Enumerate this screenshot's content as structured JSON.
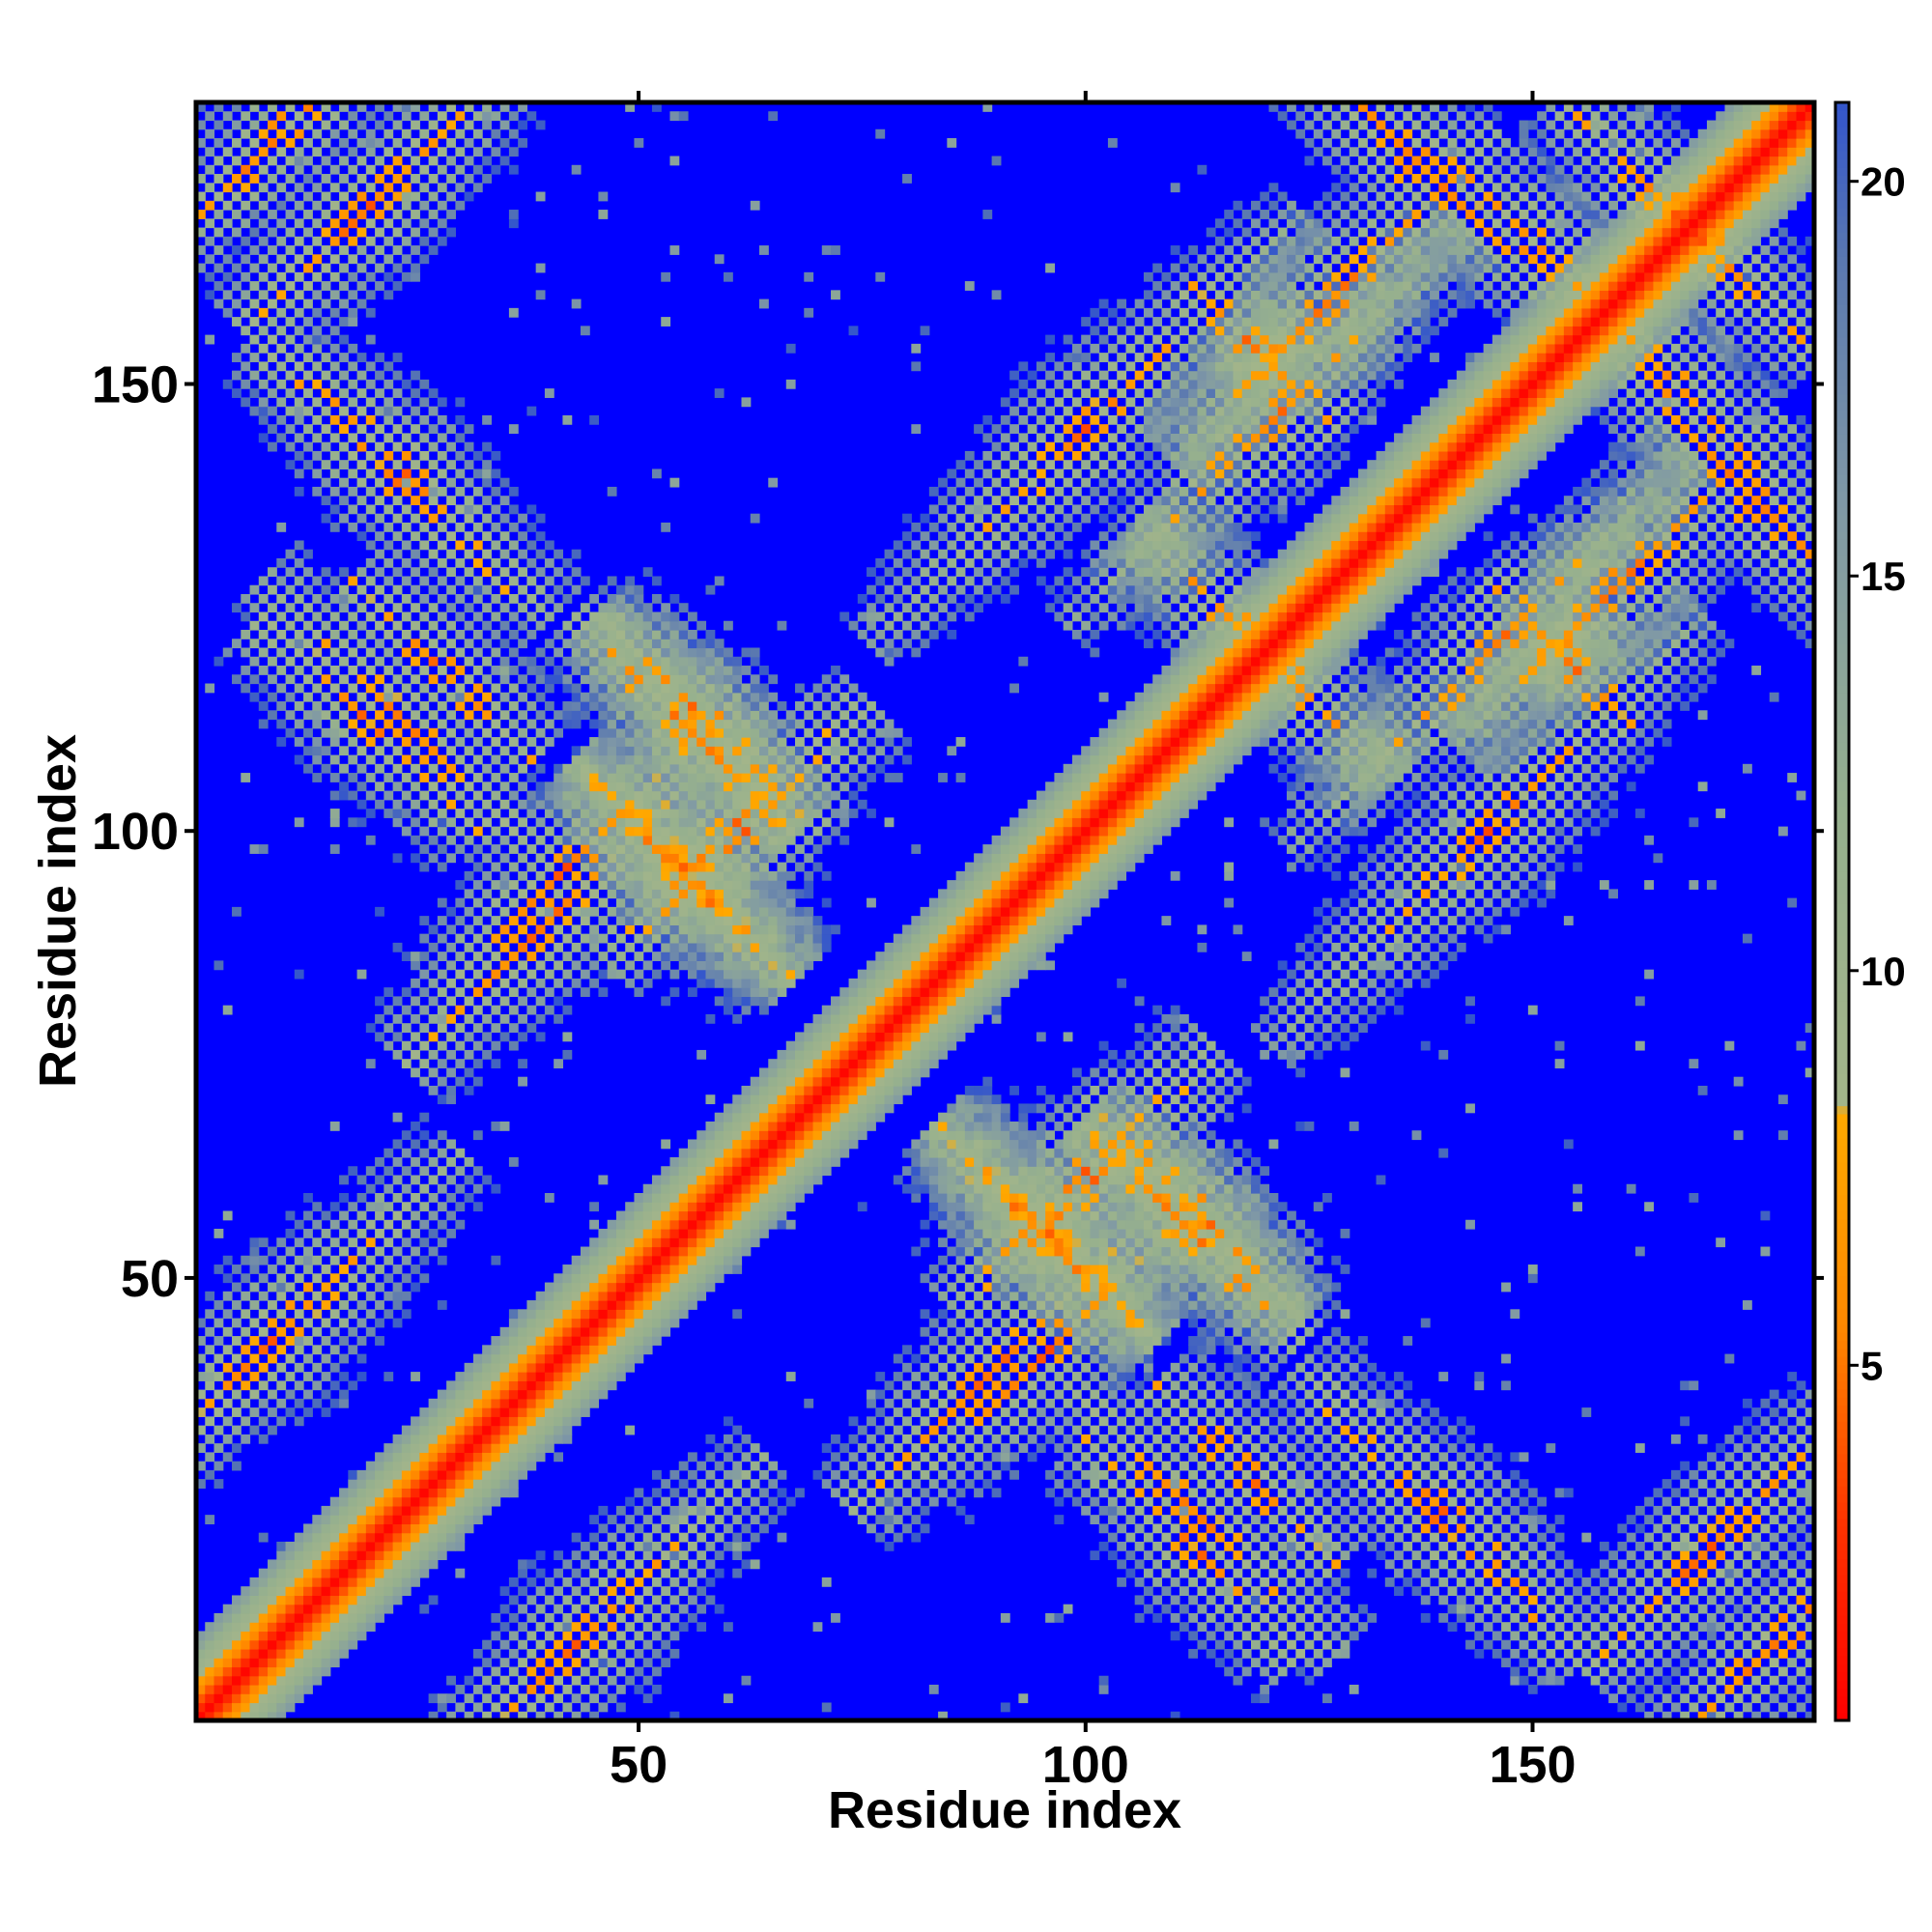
{
  "chart_data": {
    "type": "heatmap",
    "title": "",
    "xlabel": "Residue index",
    "ylabel": "Residue index",
    "n_residues": 181,
    "xlim": [
      1,
      181
    ],
    "ylim": [
      1,
      181
    ],
    "x_ticks": [
      50,
      100,
      150
    ],
    "y_ticks": [
      50,
      100,
      150
    ],
    "colorbar": {
      "min": 0.5,
      "max": 21.0,
      "ticks": [
        5,
        10,
        15,
        20
      ],
      "cap": 21,
      "stops": [
        {
          "value": 0.5,
          "color": "#ff0000"
        },
        {
          "value": 3.0,
          "color": "#ff3300"
        },
        {
          "value": 5.5,
          "color": "#ff8800"
        },
        {
          "value": 8.2,
          "color": "#ffaa00"
        },
        {
          "value": 8.3,
          "color": "#a3b58a"
        },
        {
          "value": 12.0,
          "color": "#96b08e"
        },
        {
          "value": 16.0,
          "color": "#7f98a6"
        },
        {
          "value": 19.0,
          "color": "#5a78b0"
        },
        {
          "value": 21.0,
          "color": "#3355cc"
        }
      ],
      "background_color": "#0000ff"
    },
    "contact_patches": [
      {
        "i": 22,
        "j": 140,
        "w": 6,
        "len": 14,
        "dir": "anti"
      },
      {
        "i": 20,
        "j": 112,
        "w": 6,
        "len": 12,
        "dir": "anti"
      },
      {
        "i": 58,
        "j": 112,
        "w": 6,
        "len": 12,
        "dir": "anti"
      },
      {
        "i": 55,
        "j": 95,
        "w": 6,
        "len": 12,
        "dir": "anti"
      },
      {
        "i": 28,
        "j": 118,
        "w": 6,
        "len": 10,
        "dir": "anti"
      },
      {
        "i": 112,
        "j": 24,
        "w": 7,
        "len": 16,
        "dir": "anti"
      },
      {
        "i": 140,
        "j": 24,
        "w": 7,
        "len": 16,
        "dir": "anti"
      },
      {
        "i": 96,
        "j": 55,
        "w": 6,
        "len": 12,
        "dir": "anti"
      },
      {
        "i": 112,
        "j": 55,
        "w": 6,
        "len": 12,
        "dir": "anti"
      },
      {
        "i": 137,
        "j": 175,
        "w": 6,
        "len": 14,
        "dir": "anti"
      },
      {
        "i": 175,
        "j": 137,
        "w": 6,
        "len": 14,
        "dir": "anti"
      },
      {
        "i": 118,
        "j": 122,
        "w": 6,
        "len": 12,
        "dir": "anti"
      },
      {
        "i": 165,
        "j": 170,
        "w": 6,
        "len": 12,
        "dir": "anti"
      },
      {
        "i": 150,
        "j": 166,
        "w": 5,
        "len": 10,
        "dir": "anti"
      },
      {
        "i": 153,
        "j": 120,
        "w": 5,
        "len": 8,
        "dir": "anti"
      },
      {
        "i": 10,
        "j": 44,
        "w": 8,
        "len": 20,
        "dir": "par"
      },
      {
        "i": 44,
        "j": 10,
        "w": 8,
        "len": 20,
        "dir": "par"
      },
      {
        "i": 40,
        "j": 90,
        "w": 8,
        "len": 16,
        "dir": "par"
      },
      {
        "i": 90,
        "j": 40,
        "w": 8,
        "len": 16,
        "dir": "par"
      },
      {
        "i": 96,
        "j": 42,
        "w": 8,
        "len": 14,
        "dir": "par"
      },
      {
        "i": 100,
        "j": 145,
        "w": 10,
        "len": 24,
        "dir": "par"
      },
      {
        "i": 145,
        "j": 100,
        "w": 10,
        "len": 24,
        "dir": "par"
      },
      {
        "i": 145,
        "j": 120,
        "w": 8,
        "len": 22,
        "dir": "par"
      },
      {
        "i": 170,
        "j": 20,
        "w": 6,
        "len": 14,
        "dir": "par"
      },
      {
        "i": 20,
        "j": 170,
        "w": 6,
        "len": 14,
        "dir": "par"
      },
      {
        "i": 128,
        "j": 160,
        "w": 8,
        "len": 18,
        "dir": "par"
      },
      {
        "i": 160,
        "j": 128,
        "w": 8,
        "len": 18,
        "dir": "par"
      },
      {
        "i": 60,
        "j": 100,
        "w": 8,
        "len": 14,
        "dir": "par"
      },
      {
        "i": 100,
        "j": 62,
        "w": 8,
        "len": 14,
        "dir": "par"
      },
      {
        "i": 178,
        "j": 10,
        "w": 6,
        "len": 12,
        "dir": "par"
      }
    ]
  }
}
